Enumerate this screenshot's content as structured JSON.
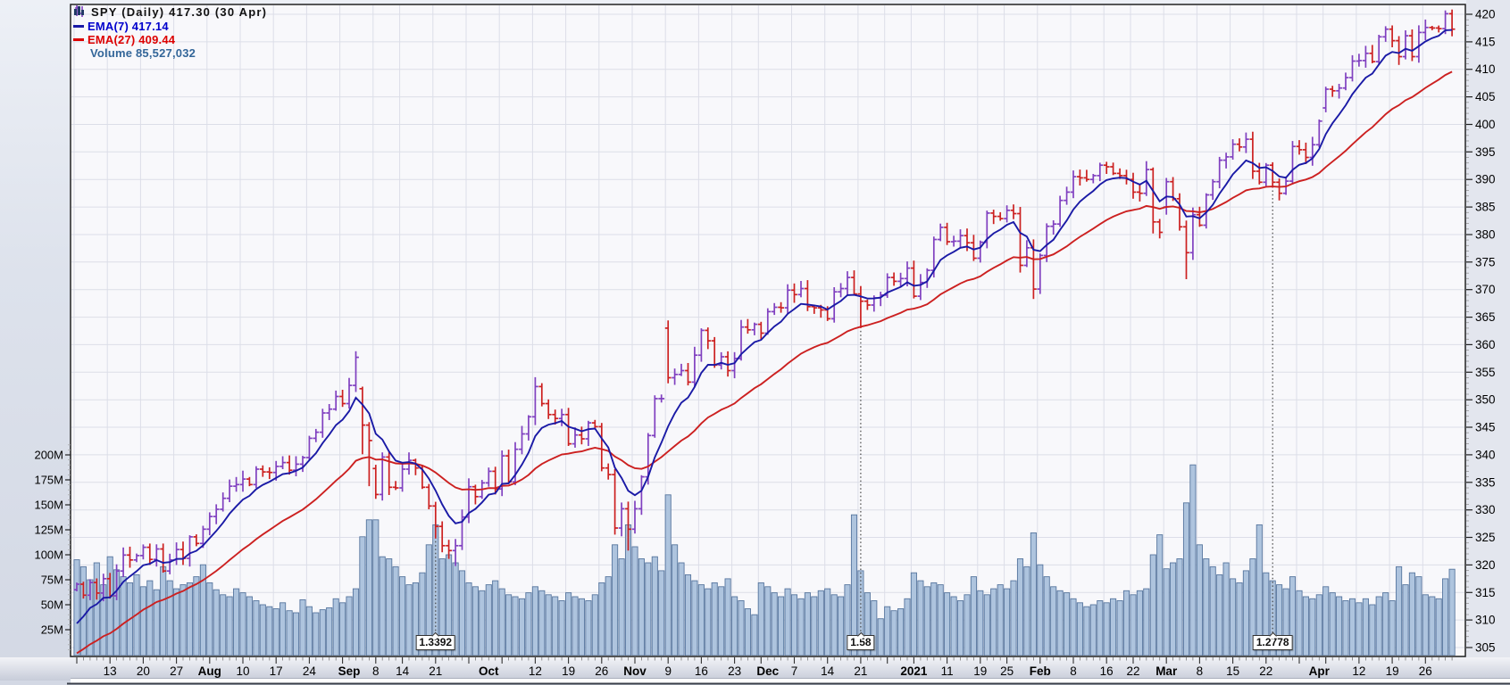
{
  "legend": {
    "title": "SPY (Daily) 417.30 (30 Apr)",
    "title_icon": "candlestick-icon",
    "ema7_label": "EMA(7) 417.14",
    "ema27_label": "EMA(27) 409.44",
    "volume_icon": "volume-bars-icon",
    "volume_label": "Volume 85,527,032",
    "colors": {
      "ema7_text": "#0000cc",
      "ema27_text": "#dd0000",
      "volume_text": "#336699"
    }
  },
  "annotations": [
    {
      "label": "1.3392",
      "day_index": 54
    },
    {
      "label": "1.58",
      "day_index": 118
    },
    {
      "label": "1.2778",
      "day_index": 180
    }
  ],
  "axes": {
    "price_ticks": [
      420,
      415,
      410,
      405,
      400,
      395,
      390,
      385,
      380,
      375,
      370,
      365,
      360,
      355,
      350,
      345,
      340,
      335,
      330,
      325,
      320,
      315,
      310,
      305
    ],
    "volume_ticks": [
      {
        "label": "200M",
        "value": 200
      },
      {
        "label": "175M",
        "value": 175
      },
      {
        "label": "150M",
        "value": 150
      },
      {
        "label": "125M",
        "value": 125
      },
      {
        "label": "100M",
        "value": 100
      },
      {
        "label": "75M",
        "value": 75
      },
      {
        "label": "50M",
        "value": 50
      },
      {
        "label": "25M",
        "value": 25
      }
    ],
    "date_ticks": [
      {
        "label": "13",
        "i": 5
      },
      {
        "label": "20",
        "i": 10
      },
      {
        "label": "27",
        "i": 15
      },
      {
        "label": "Aug",
        "i": 20,
        "bold": true
      },
      {
        "label": "10",
        "i": 25
      },
      {
        "label": "17",
        "i": 30
      },
      {
        "label": "24",
        "i": 35
      },
      {
        "label": "Sep",
        "i": 41,
        "bold": true
      },
      {
        "label": "8",
        "i": 45
      },
      {
        "label": "14",
        "i": 49
      },
      {
        "label": "21",
        "i": 54
      },
      {
        "label": "Oct",
        "i": 62,
        "bold": true
      },
      {
        "label": "12",
        "i": 69
      },
      {
        "label": "19",
        "i": 74
      },
      {
        "label": "26",
        "i": 79
      },
      {
        "label": "Nov",
        "i": 84,
        "bold": true
      },
      {
        "label": "9",
        "i": 89
      },
      {
        "label": "16",
        "i": 94
      },
      {
        "label": "23",
        "i": 99
      },
      {
        "label": "Dec",
        "i": 104,
        "bold": true
      },
      {
        "label": "7",
        "i": 108
      },
      {
        "label": "14",
        "i": 113
      },
      {
        "label": "21",
        "i": 118
      },
      {
        "label": "2021",
        "i": 126,
        "bold": true
      },
      {
        "label": "11",
        "i": 131
      },
      {
        "label": "19",
        "i": 136
      },
      {
        "label": "25",
        "i": 140
      },
      {
        "label": "Feb",
        "i": 145,
        "bold": true
      },
      {
        "label": "8",
        "i": 150
      },
      {
        "label": "16",
        "i": 155
      },
      {
        "label": "22",
        "i": 159
      },
      {
        "label": "Mar",
        "i": 164,
        "bold": true
      },
      {
        "label": "8",
        "i": 169
      },
      {
        "label": "15",
        "i": 174
      },
      {
        "label": "22",
        "i": 179
      },
      {
        "label": "Apr",
        "i": 187,
        "bold": true
      },
      {
        "label": "12",
        "i": 193
      },
      {
        "label": "19",
        "i": 198
      },
      {
        "label": "26",
        "i": 203
      }
    ]
  },
  "chart_data": {
    "type": "candlestick",
    "symbol": "SPY",
    "timeframe": "Daily",
    "last_close": 417.3,
    "last_date": "30 Apr",
    "ema7_last": 417.14,
    "ema27_last": 409.44,
    "volume_last": 85527032,
    "price_axis": {
      "min": 305,
      "max": 420,
      "step": 5
    },
    "volume_axis": {
      "min": 0,
      "max_labeled": 200,
      "step": 25,
      "unit": "M"
    },
    "ema7": {
      "period": 7,
      "seed": 307.0
    },
    "ema27": {
      "period": 27,
      "seed": 303.0
    },
    "first_open": 315.5,
    "week_start_indices": [
      0,
      5,
      10,
      15,
      20,
      25,
      30,
      35,
      40,
      45,
      49,
      54,
      59,
      64,
      69,
      74,
      79,
      84,
      89,
      94,
      99,
      103,
      108,
      113,
      118,
      122,
      126,
      131,
      136,
      140,
      145,
      150,
      155,
      159,
      164,
      169,
      174,
      179,
      184,
      188,
      193,
      198,
      203
    ],
    "closes": [
      316.5,
      314.5,
      316.8,
      314.9,
      317.5,
      314.4,
      318.9,
      321.8,
      320.9,
      321.7,
      323.2,
      321.0,
      322.9,
      318.9,
      320.9,
      322.8,
      321.2,
      325.1,
      323.9,
      326.5,
      328.8,
      330.1,
      332.1,
      334.3,
      334.6,
      335.6,
      334.6,
      337.4,
      336.9,
      336.8,
      337.9,
      338.6,
      337.2,
      338.3,
      339.5,
      343.0,
      344.1,
      347.6,
      348.3,
      350.6,
      349.3,
      352.6,
      357.7,
      345.4,
      342.6,
      332.8,
      339.6,
      334.1,
      334.0,
      337.4,
      339.0,
      337.6,
      334.1,
      330.7,
      327.0,
      323.5,
      322.6,
      323.5,
      328.7,
      334.2,
      332.4,
      334.9,
      337.0,
      333.8,
      339.8,
      335.1,
      341.0,
      343.8,
      346.9,
      352.4,
      349.3,
      347.3,
      346.6,
      347.3,
      342.0,
      343.6,
      342.9,
      345.8,
      345.1,
      337.6,
      336.4,
      326.7,
      330.2,
      326.5,
      330.2,
      336.0,
      343.5,
      350.2,
      350.2,
      354.0,
      354.6,
      355.3,
      353.2,
      358.1,
      362.6,
      360.7,
      356.3,
      357.8,
      355.3,
      357.5,
      363.2,
      362.7,
      363.7,
      362.1,
      366.0,
      366.8,
      366.7,
      369.9,
      369.1,
      370.2,
      366.9,
      366.7,
      366.3,
      364.7,
      369.6,
      370.2,
      372.2,
      369.2,
      367.9,
      367.2,
      368.5,
      369.0,
      372.2,
      371.5,
      372.0,
      373.9,
      368.8,
      371.3,
      373.5,
      379.1,
      381.3,
      378.7,
      378.8,
      379.8,
      378.5,
      375.7,
      378.6,
      383.9,
      383.3,
      382.9,
      384.4,
      383.8,
      374.4,
      377.6,
      370.1,
      376.2,
      381.5,
      381.9,
      386.2,
      387.7,
      390.5,
      390.3,
      390.0,
      390.7,
      392.6,
      392.3,
      391.1,
      390.7,
      390.0,
      387.7,
      387.5,
      391.8,
      382.3,
      380.4,
      389.6,
      386.5,
      381.4,
      376.7,
      383.6,
      381.7,
      387.2,
      389.6,
      393.5,
      394.1,
      396.4,
      395.9,
      397.3,
      391.5,
      389.5,
      392.6,
      389.5,
      387.5,
      389.7,
      396.0,
      395.4,
      394.0,
      396.3,
      400.6,
      406.4,
      406.1,
      406.6,
      408.5,
      411.5,
      411.6,
      412.9,
      411.4,
      415.9,
      417.3,
      415.2,
      412.3,
      416.1,
      412.3,
      416.7,
      417.6,
      417.5,
      417.4,
      420.1,
      417.3
    ],
    "volumes_millions": [
      95,
      88,
      75,
      92,
      70,
      98,
      85,
      78,
      72,
      80,
      68,
      74,
      65,
      88,
      74,
      66,
      70,
      72,
      78,
      90,
      72,
      65,
      60,
      58,
      66,
      62,
      58,
      54,
      50,
      48,
      46,
      52,
      44,
      42,
      55,
      48,
      42,
      45,
      47,
      56,
      52,
      58,
      66,
      118,
      135,
      135,
      98,
      96,
      88,
      78,
      70,
      72,
      82,
      110,
      130,
      96,
      100,
      92,
      84,
      72,
      68,
      64,
      70,
      74,
      66,
      60,
      58,
      56,
      62,
      68,
      64,
      60,
      58,
      54,
      62,
      58,
      56,
      54,
      60,
      72,
      78,
      110,
      96,
      130,
      108,
      96,
      92,
      98,
      84,
      160,
      110,
      92,
      80,
      74,
      70,
      66,
      72,
      68,
      76,
      58,
      54,
      46,
      40,
      72,
      68,
      62,
      58,
      66,
      60,
      56,
      62,
      58,
      64,
      66,
      60,
      58,
      70,
      140,
      84,
      62,
      54,
      36,
      48,
      44,
      46,
      56,
      82,
      74,
      68,
      72,
      70,
      62,
      58,
      54,
      60,
      78,
      64,
      60,
      66,
      70,
      66,
      74,
      96,
      88,
      122,
      90,
      78,
      68,
      64,
      62,
      56,
      52,
      48,
      50,
      54,
      52,
      56,
      54,
      64,
      60,
      64,
      66,
      100,
      120,
      86,
      92,
      96,
      152,
      190,
      110,
      96,
      88,
      80,
      92,
      76,
      72,
      84,
      96,
      130,
      82,
      74,
      70,
      66,
      78,
      64,
      58,
      56,
      60,
      68,
      62,
      58,
      54,
      56,
      52,
      56,
      50,
      58,
      62,
      54,
      88,
      70,
      82,
      78,
      60,
      58,
      56,
      76,
      85.5
    ],
    "open_overrides": {
      "43": 352.0,
      "45": 337.5,
      "89": 363.0,
      "164": 385.0,
      "188": 403.0
    },
    "wick_overrides": {
      "42": {
        "high": 358.8
      },
      "43": {
        "low": 340.1
      },
      "44": {
        "low": 334.3
      },
      "54": {
        "low": 324.8
      },
      "57": {
        "low": 319.8
      },
      "69": {
        "high": 354.1
      },
      "83": {
        "low": 322.6
      },
      "89": {
        "high": 364.4
      },
      "118": {
        "low": 363.0
      },
      "144": {
        "low": 368.3
      },
      "162": {
        "low": 380.2
      },
      "167": {
        "low": 371.9
      },
      "206": {
        "high": 420.7
      }
    },
    "colors": {
      "up": "#8040c0",
      "down": "#cc2020",
      "ema7": "#1a1aa6",
      "ema27": "#cc2020",
      "volume_fill": "#aec4de",
      "volume_border": "#57769e",
      "grid": "#dcdee8",
      "plot_bg": "#f8f8fb",
      "axis_text": "#000000"
    }
  }
}
